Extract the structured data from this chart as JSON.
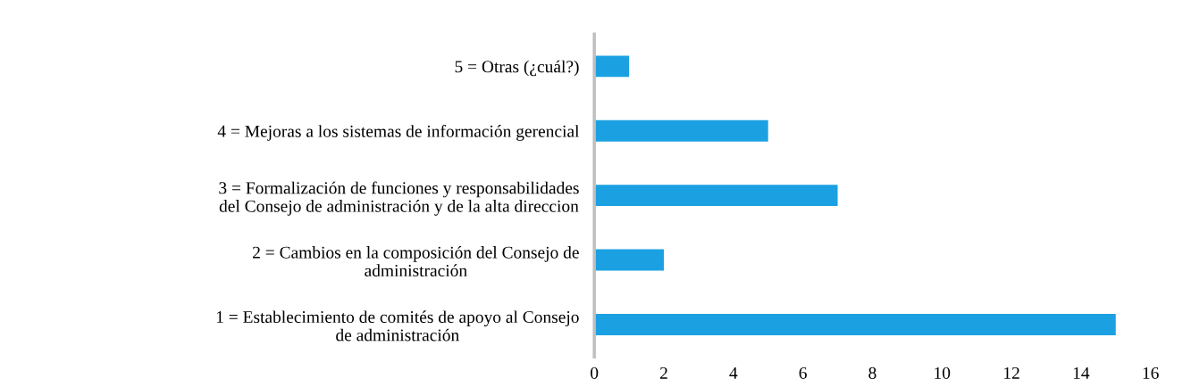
{
  "chart_data": {
    "type": "bar",
    "orientation": "horizontal",
    "categories": [
      "5 = Otras (¿cuál?)",
      "4 = Mejoras a los sistemas de información gerencial",
      "3 = Formalización de funciones y responsabilidades\ndel Consejo de administración y de la alta direccion",
      "2 = Cambios en la composición del Consejo de\nadministración",
      "1 = Establecimiento de comités de apoyo al Consejo\nde administración"
    ],
    "values": [
      1,
      5,
      7,
      2,
      15
    ],
    "color": "#1ba1e2",
    "xlim": [
      0,
      16
    ],
    "xticks": [
      0,
      2,
      4,
      6,
      8,
      10,
      12,
      14,
      16
    ],
    "grid": false,
    "legend": false
  }
}
